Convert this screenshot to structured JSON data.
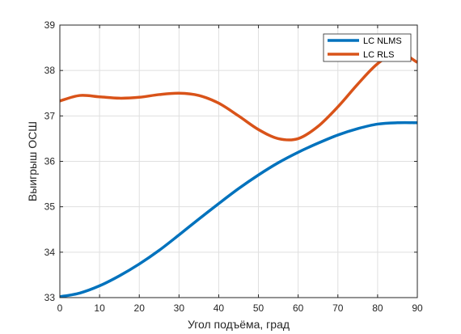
{
  "chart_data": {
    "type": "line",
    "xlabel": "Угол подъёма, град",
    "ylabel": "Выигрыш ОСШ",
    "xlim": [
      0,
      90
    ],
    "ylim": [
      33,
      39
    ],
    "x_ticks": [
      0,
      10,
      20,
      30,
      40,
      50,
      60,
      70,
      80,
      90
    ],
    "y_ticks": [
      33,
      34,
      35,
      36,
      37,
      38,
      39
    ],
    "grid": true,
    "legend_position": "top-right",
    "x": [
      0,
      5,
      10,
      15,
      20,
      25,
      30,
      35,
      40,
      45,
      50,
      55,
      60,
      65,
      70,
      75,
      80,
      85,
      90
    ],
    "series": [
      {
        "name": "LC NLMS",
        "color": "#0072BD",
        "values": [
          33.02,
          33.1,
          33.26,
          33.48,
          33.74,
          34.04,
          34.38,
          34.73,
          35.07,
          35.4,
          35.7,
          35.97,
          36.2,
          36.4,
          36.58,
          36.72,
          36.82,
          36.85,
          36.85
        ]
      },
      {
        "name": "LC RLS",
        "color": "#D95319",
        "values": [
          37.33,
          37.45,
          37.42,
          37.39,
          37.41,
          37.47,
          37.5,
          37.45,
          37.28,
          37.0,
          36.7,
          36.5,
          36.5,
          36.77,
          37.2,
          37.7,
          38.15,
          38.4,
          38.18
        ]
      }
    ]
  }
}
